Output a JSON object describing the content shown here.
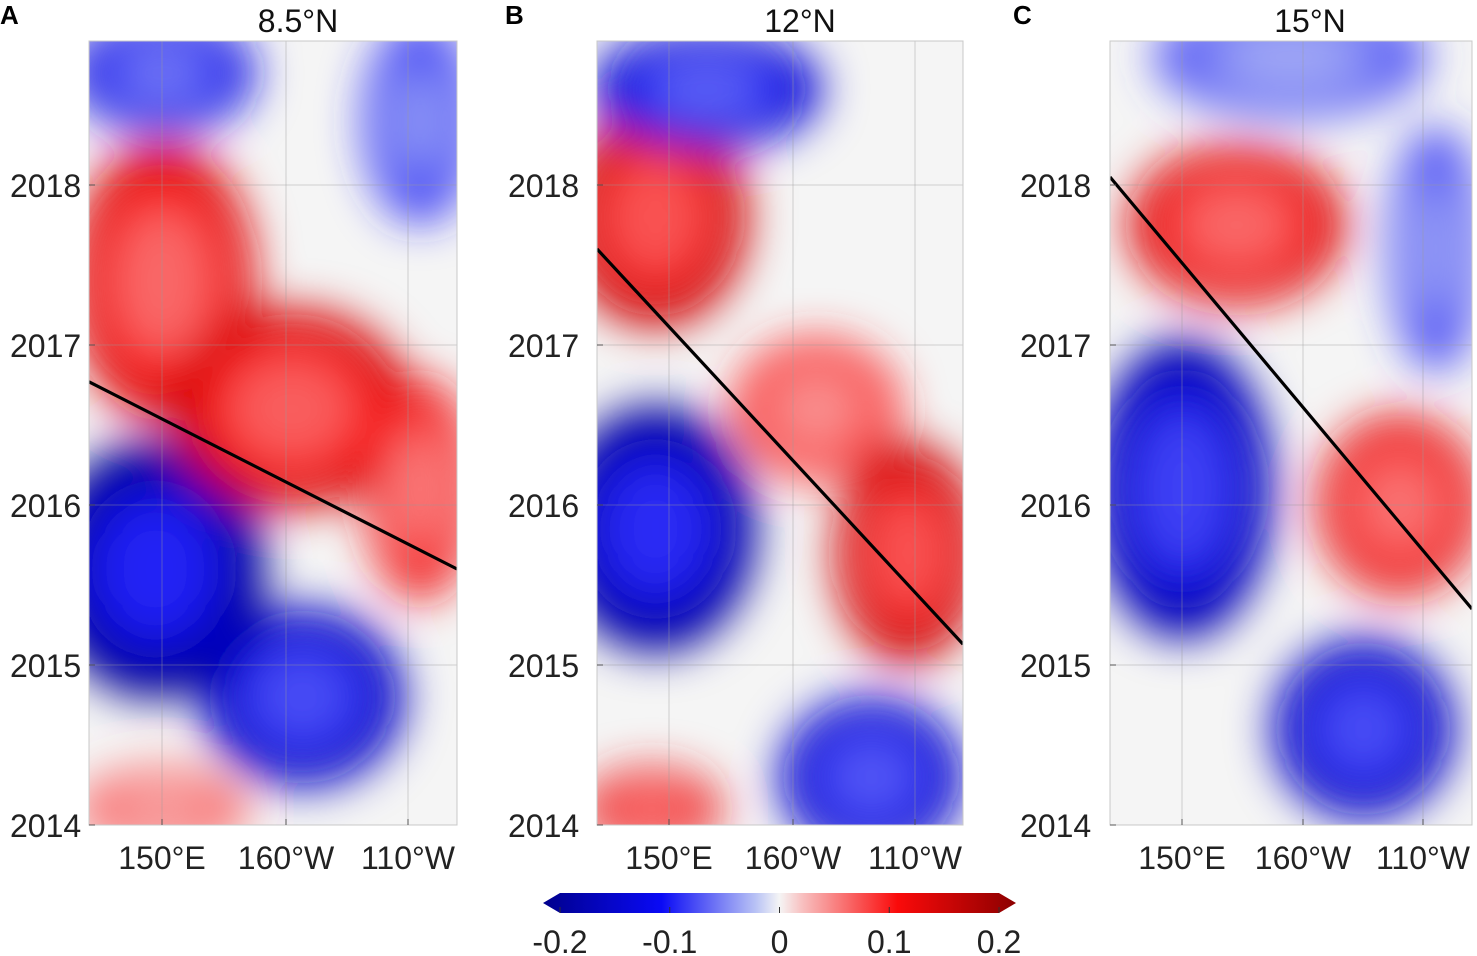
{
  "chart_data": {
    "type": "heatmap",
    "x_ticks": [
      "150°E",
      "160°W",
      "110°W"
    ],
    "y_ticks": [
      "2014",
      "2015",
      "2016",
      "2017",
      "2018"
    ],
    "ylim": [
      2014,
      2018.9
    ],
    "panels": [
      {
        "label": "A",
        "title": "8.5°N",
        "trend_line": {
          "start_year": 2016.77,
          "end_year": 2015.6
        },
        "blobs": [
          {
            "x": 0.18,
            "year": 2015.6,
            "rx": 0.24,
            "ry": 0.65,
            "value": -0.2
          },
          {
            "x": 0.58,
            "year": 2014.8,
            "rx": 0.22,
            "ry": 0.45,
            "value": -0.16
          },
          {
            "x": 0.2,
            "year": 2017.4,
            "rx": 0.2,
            "ry": 0.7,
            "value": 0.13
          },
          {
            "x": 0.55,
            "year": 2016.6,
            "rx": 0.26,
            "ry": 0.5,
            "value": 0.14
          },
          {
            "x": 0.9,
            "year": 2016.1,
            "rx": 0.12,
            "ry": 0.55,
            "value": 0.11
          },
          {
            "x": 0.2,
            "year": 2018.7,
            "rx": 0.2,
            "ry": 0.3,
            "value": -0.12
          },
          {
            "x": 0.9,
            "year": 2018.4,
            "rx": 0.12,
            "ry": 0.5,
            "value": -0.09
          },
          {
            "x": 0.2,
            "year": 2014.1,
            "rx": 0.18,
            "ry": 0.2,
            "value": 0.07
          }
        ]
      },
      {
        "label": "B",
        "title": "12°N",
        "trend_line": {
          "start_year": 2017.6,
          "end_year": 2015.13
        },
        "blobs": [
          {
            "x": 0.16,
            "year": 2015.85,
            "rx": 0.22,
            "ry": 0.62,
            "value": -0.19
          },
          {
            "x": 0.16,
            "year": 2017.8,
            "rx": 0.2,
            "ry": 0.55,
            "value": 0.15
          },
          {
            "x": 0.85,
            "year": 2015.7,
            "rx": 0.16,
            "ry": 0.55,
            "value": 0.15
          },
          {
            "x": 0.6,
            "year": 2016.6,
            "rx": 0.18,
            "ry": 0.35,
            "value": 0.09
          },
          {
            "x": 0.3,
            "year": 2018.6,
            "rx": 0.25,
            "ry": 0.3,
            "value": -0.14
          },
          {
            "x": 0.75,
            "year": 2014.3,
            "rx": 0.2,
            "ry": 0.4,
            "value": -0.15
          },
          {
            "x": 0.15,
            "year": 2014.1,
            "rx": 0.15,
            "ry": 0.2,
            "value": 0.12
          }
        ]
      },
      {
        "label": "C",
        "title": "15°N",
        "trend_line": {
          "start_year": 2018.05,
          "end_year": 2015.35
        },
        "blobs": [
          {
            "x": 0.2,
            "year": 2016.1,
            "rx": 0.2,
            "ry": 0.75,
            "value": -0.17
          },
          {
            "x": 0.35,
            "year": 2017.75,
            "rx": 0.24,
            "ry": 0.4,
            "value": 0.13
          },
          {
            "x": 0.8,
            "year": 2016.0,
            "rx": 0.18,
            "ry": 0.45,
            "value": 0.12
          },
          {
            "x": 0.7,
            "year": 2014.6,
            "rx": 0.2,
            "ry": 0.45,
            "value": -0.16
          },
          {
            "x": 0.5,
            "year": 2018.8,
            "rx": 0.3,
            "ry": 0.3,
            "value": -0.07
          },
          {
            "x": 0.9,
            "year": 2017.6,
            "rx": 0.1,
            "ry": 0.6,
            "value": -0.08
          }
        ]
      }
    ],
    "colorbar": {
      "ticks": [
        "-0.2",
        "-0.1",
        "0",
        "0.1",
        "0.2"
      ],
      "range": [
        -0.2,
        0.2
      ]
    }
  }
}
